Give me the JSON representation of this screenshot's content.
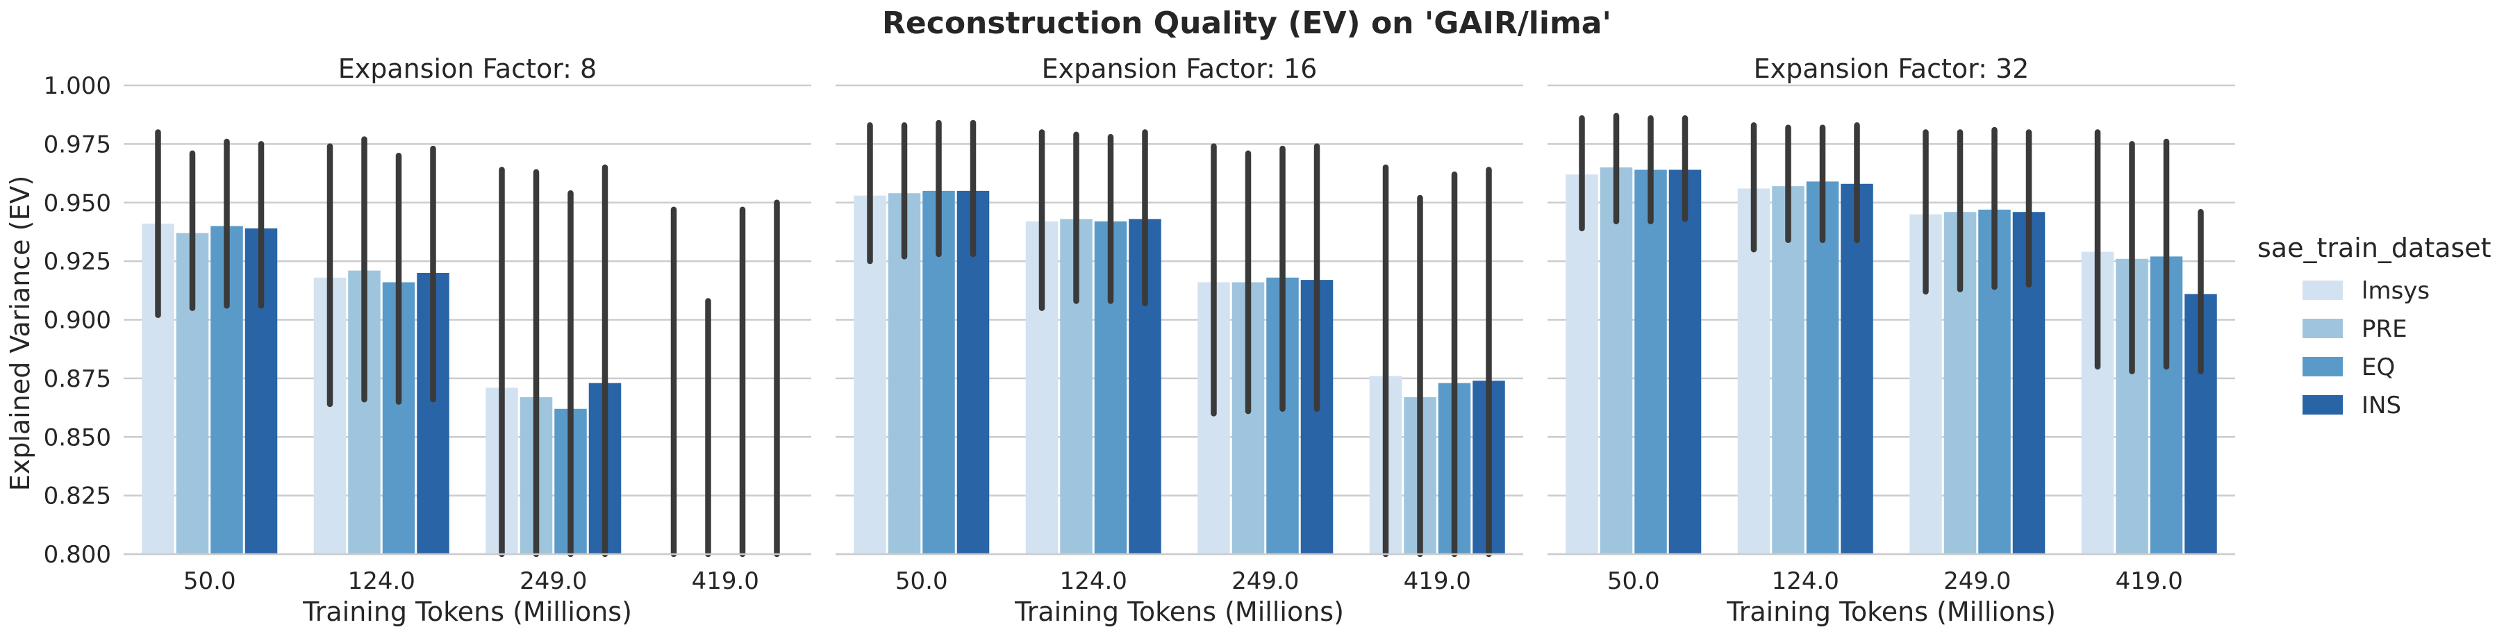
{
  "chart_data": {
    "type": "bar",
    "title": "Reconstruction Quality (EV) on 'GAIR/lima'",
    "ylabel": "Explained Variance (EV)",
    "xlabel": "Training Tokens (Millions)",
    "ylim": [
      0.8,
      1.0
    ],
    "yticks": [
      "0.800",
      "0.825",
      "0.850",
      "0.875",
      "0.900",
      "0.925",
      "0.950",
      "0.975",
      "1.000"
    ],
    "categories": [
      "50.0",
      "124.0",
      "249.0",
      "419.0"
    ],
    "grid": "horizontal",
    "legend": {
      "title": "sae_train_dataset",
      "position": "right",
      "entries": [
        "lmsys",
        "PRE",
        "EQ",
        "INS"
      ]
    },
    "colors": {
      "lmsys": "#d3e2f1",
      "PRE": "#9ec5dd",
      "EQ": "#5a9ac9",
      "INS": "#2964a6",
      "errorbar": "#3a3a3a",
      "grid": "#cccccc"
    },
    "panels": [
      {
        "title": "Expansion Factor: 8",
        "series": [
          {
            "name": "lmsys",
            "values": [
              0.941,
              0.918,
              0.871,
              null
            ],
            "err_low": [
              0.902,
              0.864,
              0.78,
              0.7
            ],
            "err_high": [
              0.98,
              0.974,
              0.964,
              0.947
            ]
          },
          {
            "name": "PRE",
            "values": [
              0.937,
              0.921,
              0.867,
              null
            ],
            "err_low": [
              0.905,
              0.866,
              0.77,
              0.7
            ],
            "err_high": [
              0.971,
              0.977,
              0.963,
              0.908
            ]
          },
          {
            "name": "EQ",
            "values": [
              0.94,
              0.916,
              0.862,
              null
            ],
            "err_low": [
              0.906,
              0.865,
              0.77,
              0.7
            ],
            "err_high": [
              0.976,
              0.97,
              0.954,
              0.947
            ]
          },
          {
            "name": "INS",
            "values": [
              0.939,
              0.92,
              0.873,
              null
            ],
            "err_low": [
              0.906,
              0.866,
              0.78,
              0.7
            ],
            "err_high": [
              0.975,
              0.973,
              0.965,
              0.95
            ]
          }
        ]
      },
      {
        "title": "Expansion Factor: 16",
        "series": [
          {
            "name": "lmsys",
            "values": [
              0.953,
              0.942,
              0.916,
              0.876
            ],
            "err_low": [
              0.925,
              0.905,
              0.86,
              0.79
            ],
            "err_high": [
              0.983,
              0.98,
              0.974,
              0.965
            ]
          },
          {
            "name": "PRE",
            "values": [
              0.954,
              0.943,
              0.916,
              0.867
            ],
            "err_low": [
              0.927,
              0.908,
              0.861,
              0.78
            ],
            "err_high": [
              0.983,
              0.979,
              0.971,
              0.952
            ]
          },
          {
            "name": "EQ",
            "values": [
              0.955,
              0.942,
              0.918,
              0.873
            ],
            "err_low": [
              0.928,
              0.908,
              0.862,
              0.785
            ],
            "err_high": [
              0.984,
              0.978,
              0.973,
              0.962
            ]
          },
          {
            "name": "INS",
            "values": [
              0.955,
              0.943,
              0.917,
              0.874
            ],
            "err_low": [
              0.928,
              0.907,
              0.862,
              0.785
            ],
            "err_high": [
              0.984,
              0.98,
              0.974,
              0.964
            ]
          }
        ]
      },
      {
        "title": "Expansion Factor: 32",
        "series": [
          {
            "name": "lmsys",
            "values": [
              0.962,
              0.956,
              0.945,
              0.929
            ],
            "err_low": [
              0.939,
              0.93,
              0.912,
              0.88
            ],
            "err_high": [
              0.986,
              0.983,
              0.98,
              0.98
            ]
          },
          {
            "name": "PRE",
            "values": [
              0.965,
              0.957,
              0.946,
              0.926
            ],
            "err_low": [
              0.942,
              0.934,
              0.913,
              0.878
            ],
            "err_high": [
              0.987,
              0.982,
              0.98,
              0.975
            ]
          },
          {
            "name": "EQ",
            "values": [
              0.964,
              0.959,
              0.947,
              0.927
            ],
            "err_low": [
              0.942,
              0.934,
              0.914,
              0.88
            ],
            "err_high": [
              0.986,
              0.982,
              0.981,
              0.976
            ]
          },
          {
            "name": "INS",
            "values": [
              0.964,
              0.958,
              0.946,
              0.911
            ],
            "err_low": [
              0.943,
              0.934,
              0.915,
              0.878
            ],
            "err_high": [
              0.986,
              0.983,
              0.98,
              0.946
            ]
          }
        ]
      }
    ]
  }
}
